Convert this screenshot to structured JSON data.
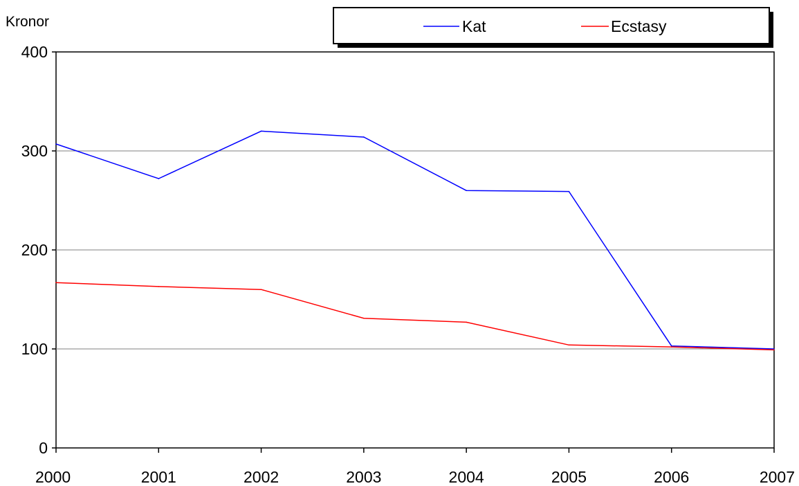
{
  "chart_data": {
    "type": "line",
    "ylabel": "Kronor",
    "x": [
      "2000",
      "2001",
      "2002",
      "2003",
      "2004",
      "2005",
      "2006",
      "2007"
    ],
    "ylim": [
      0,
      400
    ],
    "yticks": [
      "0",
      "100",
      "200",
      "300",
      "400"
    ],
    "grid": "horizontal",
    "legend_position": "top-right",
    "series": [
      {
        "name": "Kat",
        "color": "#0000ff",
        "values": [
          307,
          272,
          320,
          314,
          260,
          259,
          103,
          100
        ]
      },
      {
        "name": "Ecstasy",
        "color": "#ff0000",
        "values": [
          167,
          163,
          160,
          131,
          127,
          104,
          102,
          99
        ]
      }
    ]
  }
}
